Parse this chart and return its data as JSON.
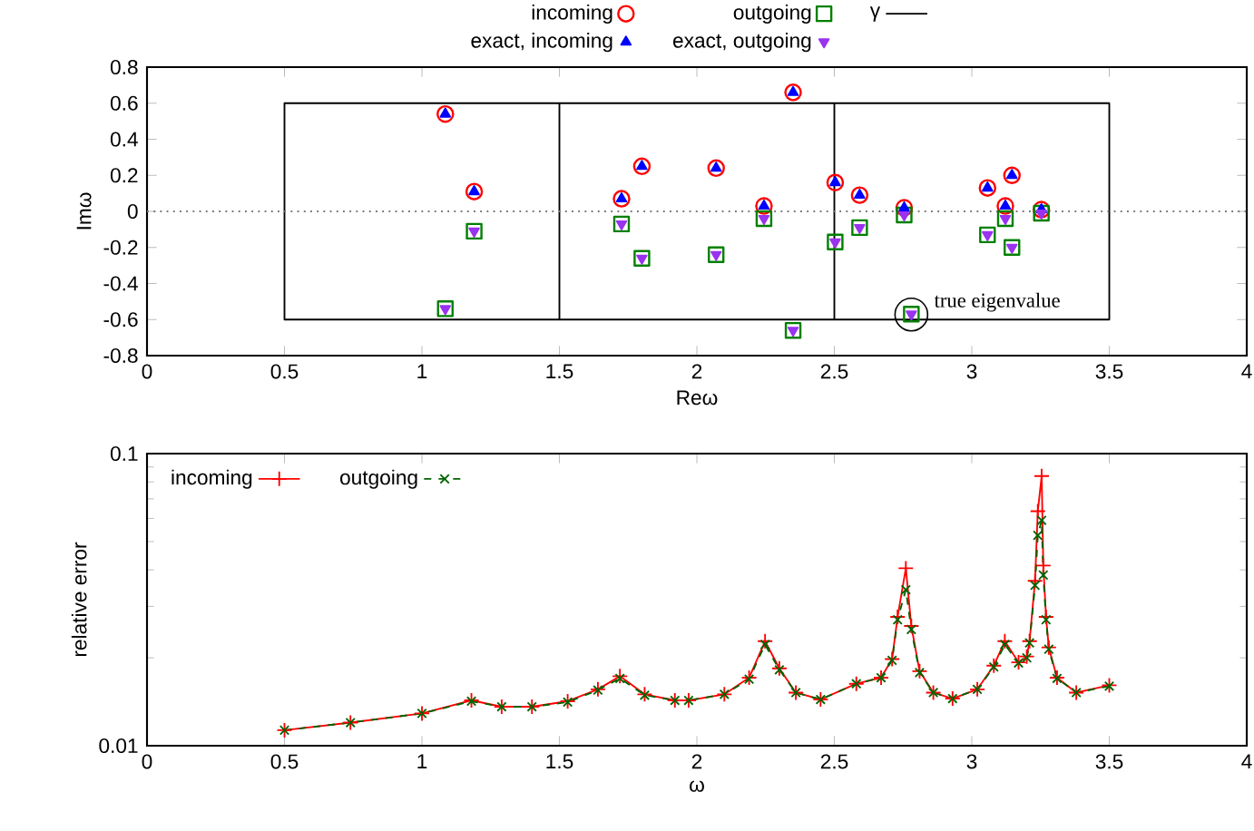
{
  "chart_data": [
    {
      "type": "scatter",
      "xlabel": "Reω",
      "ylabel": "Imω",
      "xlim": [
        0,
        4
      ],
      "ylim": [
        -0.8,
        0.8
      ],
      "xticks": [
        0,
        0.5,
        1,
        1.5,
        2,
        2.5,
        3,
        3.5,
        4
      ],
      "yticks": [
        -0.8,
        -0.6,
        -0.4,
        -0.2,
        0,
        0.2,
        0.4,
        0.6,
        0.8
      ],
      "legend": "top",
      "ref_lines": [
        {
          "axis": "y",
          "value": 0,
          "color": "#777777",
          "line_style": "dotted"
        }
      ],
      "annotations": [
        {
          "text": "true eigenvalue",
          "x": 2.78,
          "y": -0.572
        }
      ],
      "series": [
        {
          "name": "incoming",
          "color": "#ff0000",
          "marker": "circle",
          "x": [
            1.085,
            1.19,
            1.726,
            1.8,
            2.07,
            2.244,
            2.35,
            2.503,
            2.592,
            2.754,
            3.057,
            3.122,
            3.146,
            3.253
          ],
          "values": [
            0.54,
            0.11,
            0.07,
            0.25,
            0.24,
            0.03,
            0.66,
            0.16,
            0.09,
            0.02,
            0.13,
            0.03,
            0.2,
            0.01
          ]
        },
        {
          "name": "outgoing",
          "color": "#008000",
          "marker": "square",
          "x": [
            1.085,
            1.19,
            1.726,
            1.8,
            2.07,
            2.244,
            2.35,
            2.503,
            2.592,
            2.754,
            2.78,
            3.057,
            3.122,
            3.146,
            3.253
          ],
          "values": [
            -0.54,
            -0.11,
            -0.07,
            -0.26,
            -0.24,
            -0.04,
            -0.66,
            -0.17,
            -0.09,
            -0.02,
            -0.57,
            -0.13,
            -0.04,
            -0.2,
            -0.01
          ]
        },
        {
          "name": "γ",
          "type": "line",
          "color": "#000000",
          "marker": "none",
          "line_style": "solid",
          "x": [
            0.5,
            3.5,
            3.5,
            0.5,
            0.5,
            1.5,
            1.5,
            2.5,
            2.5
          ],
          "values": [
            -0.6,
            -0.6,
            0.6,
            0.6,
            -0.6,
            -0.6,
            0.6,
            0.6,
            -0.6
          ]
        },
        {
          "name": "exact, incoming",
          "color": "#0000ff",
          "marker": "triangle",
          "x": [
            1.085,
            1.19,
            1.726,
            1.8,
            2.07,
            2.244,
            2.35,
            2.503,
            2.592,
            2.754,
            3.057,
            3.122,
            3.146,
            3.253
          ],
          "values": [
            0.54,
            0.11,
            0.07,
            0.25,
            0.24,
            0.03,
            0.66,
            0.16,
            0.09,
            0.02,
            0.13,
            0.03,
            0.2,
            0.01
          ]
        },
        {
          "name": "exact, outgoing",
          "color": "#9933ee",
          "marker": "triangle down",
          "x": [
            1.085,
            1.19,
            1.726,
            1.8,
            2.07,
            2.244,
            2.35,
            2.503,
            2.592,
            2.754,
            2.78,
            3.057,
            3.122,
            3.146,
            3.253
          ],
          "values": [
            -0.54,
            -0.11,
            -0.07,
            -0.26,
            -0.24,
            -0.04,
            -0.66,
            -0.17,
            -0.09,
            -0.02,
            -0.57,
            -0.13,
            -0.04,
            -0.2,
            -0.01
          ]
        }
      ]
    },
    {
      "type": "line",
      "xlabel": "ω",
      "ylabel": "relative error",
      "xlim": [
        0,
        4
      ],
      "ylim": [
        0.01,
        0.1
      ],
      "log": true,
      "xticks": [
        0,
        0.5,
        1,
        1.5,
        2,
        2.5,
        3,
        3.5,
        4
      ],
      "yticks": [
        0.01,
        0.1
      ],
      "legend": "top left",
      "x": [
        0.5,
        0.74,
        1.0,
        1.18,
        1.29,
        1.4,
        1.53,
        1.64,
        1.72,
        1.81,
        1.92,
        1.97,
        2.1,
        2.19,
        2.248,
        2.3,
        2.36,
        2.45,
        2.58,
        2.67,
        2.71,
        2.73,
        2.76,
        2.78,
        2.81,
        2.86,
        2.93,
        3.02,
        3.08,
        3.12,
        3.17,
        3.2,
        3.21,
        3.23,
        3.24,
        3.254,
        3.26,
        3.27,
        3.28,
        3.31,
        3.38,
        3.5
      ],
      "series": [
        {
          "name": "incoming",
          "color": "#ff0000",
          "marker": "plus",
          "line_style": "solid",
          "values": [
            0.0113,
            0.012,
            0.0129,
            0.0143,
            0.0136,
            0.0136,
            0.0142,
            0.0156,
            0.0173,
            0.015,
            0.0143,
            0.0143,
            0.015,
            0.0171,
            0.0228,
            0.0184,
            0.0152,
            0.0144,
            0.0163,
            0.0171,
            0.0198,
            0.0276,
            0.0405,
            0.0257,
            0.018,
            0.0152,
            0.0145,
            0.0156,
            0.0188,
            0.0228,
            0.0193,
            0.0202,
            0.0228,
            0.0367,
            0.0635,
            0.0838,
            0.0414,
            0.0276,
            0.0217,
            0.0171,
            0.0152,
            0.0161
          ]
        },
        {
          "name": "outgoing",
          "color": "#006400",
          "marker": "cross",
          "line_style": "dashed",
          "values": [
            0.0113,
            0.012,
            0.0129,
            0.0142,
            0.0136,
            0.0136,
            0.0141,
            0.0155,
            0.017,
            0.0149,
            0.0143,
            0.0143,
            0.015,
            0.0169,
            0.0222,
            0.0182,
            0.0152,
            0.0144,
            0.0163,
            0.0171,
            0.0196,
            0.027,
            0.0342,
            0.025,
            0.0178,
            0.0152,
            0.0145,
            0.0156,
            0.0186,
            0.0222,
            0.0192,
            0.02,
            0.0225,
            0.0354,
            0.0525,
            0.0591,
            0.0384,
            0.027,
            0.0214,
            0.017,
            0.0152,
            0.016
          ]
        }
      ]
    }
  ]
}
